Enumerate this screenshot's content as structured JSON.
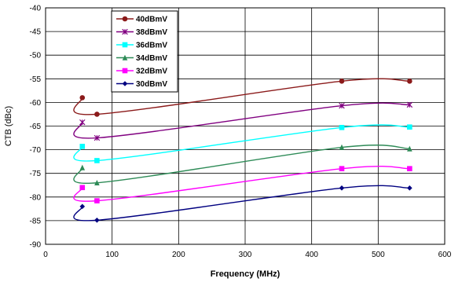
{
  "chart_data": {
    "type": "line",
    "title": "",
    "xlabel": "Frequency (MHz)",
    "ylabel": "CTB (dBc)",
    "xlim": [
      0,
      600
    ],
    "ylim": [
      -90,
      -40
    ],
    "xticks": [
      0,
      100,
      200,
      300,
      400,
      500,
      600
    ],
    "yticks": [
      -40,
      -45,
      -50,
      -55,
      -60,
      -65,
      -70,
      -75,
      -80,
      -85,
      -90
    ],
    "grid": true,
    "legend_position": "top-left",
    "x": [
      55.25,
      77.25,
      445.25,
      547.25
    ],
    "series": [
      {
        "name": "40dBmV",
        "values": [
          -59.0,
          -62.5,
          -55.5,
          -55.5
        ],
        "color": "#8b1a1a",
        "marker": "circle"
      },
      {
        "name": "38dBmV",
        "values": [
          -64.2,
          -67.5,
          -60.7,
          -60.5
        ],
        "color": "#800080",
        "marker": "star"
      },
      {
        "name": "36dBmV",
        "values": [
          -69.3,
          -72.3,
          -65.3,
          -65.2
        ],
        "color": "#00ffff",
        "marker": "square"
      },
      {
        "name": "34dBmV",
        "values": [
          -73.8,
          -77.0,
          -69.5,
          -69.8
        ],
        "color": "#2e8b57",
        "marker": "triangle"
      },
      {
        "name": "32dBmV",
        "values": [
          -78.0,
          -80.8,
          -74.0,
          -74.0
        ],
        "color": "#ff00ff",
        "marker": "square"
      },
      {
        "name": "30dBmV",
        "values": [
          -82.0,
          -84.9,
          -78.1,
          -78.1
        ],
        "color": "#000080",
        "marker": "diamond"
      }
    ]
  }
}
